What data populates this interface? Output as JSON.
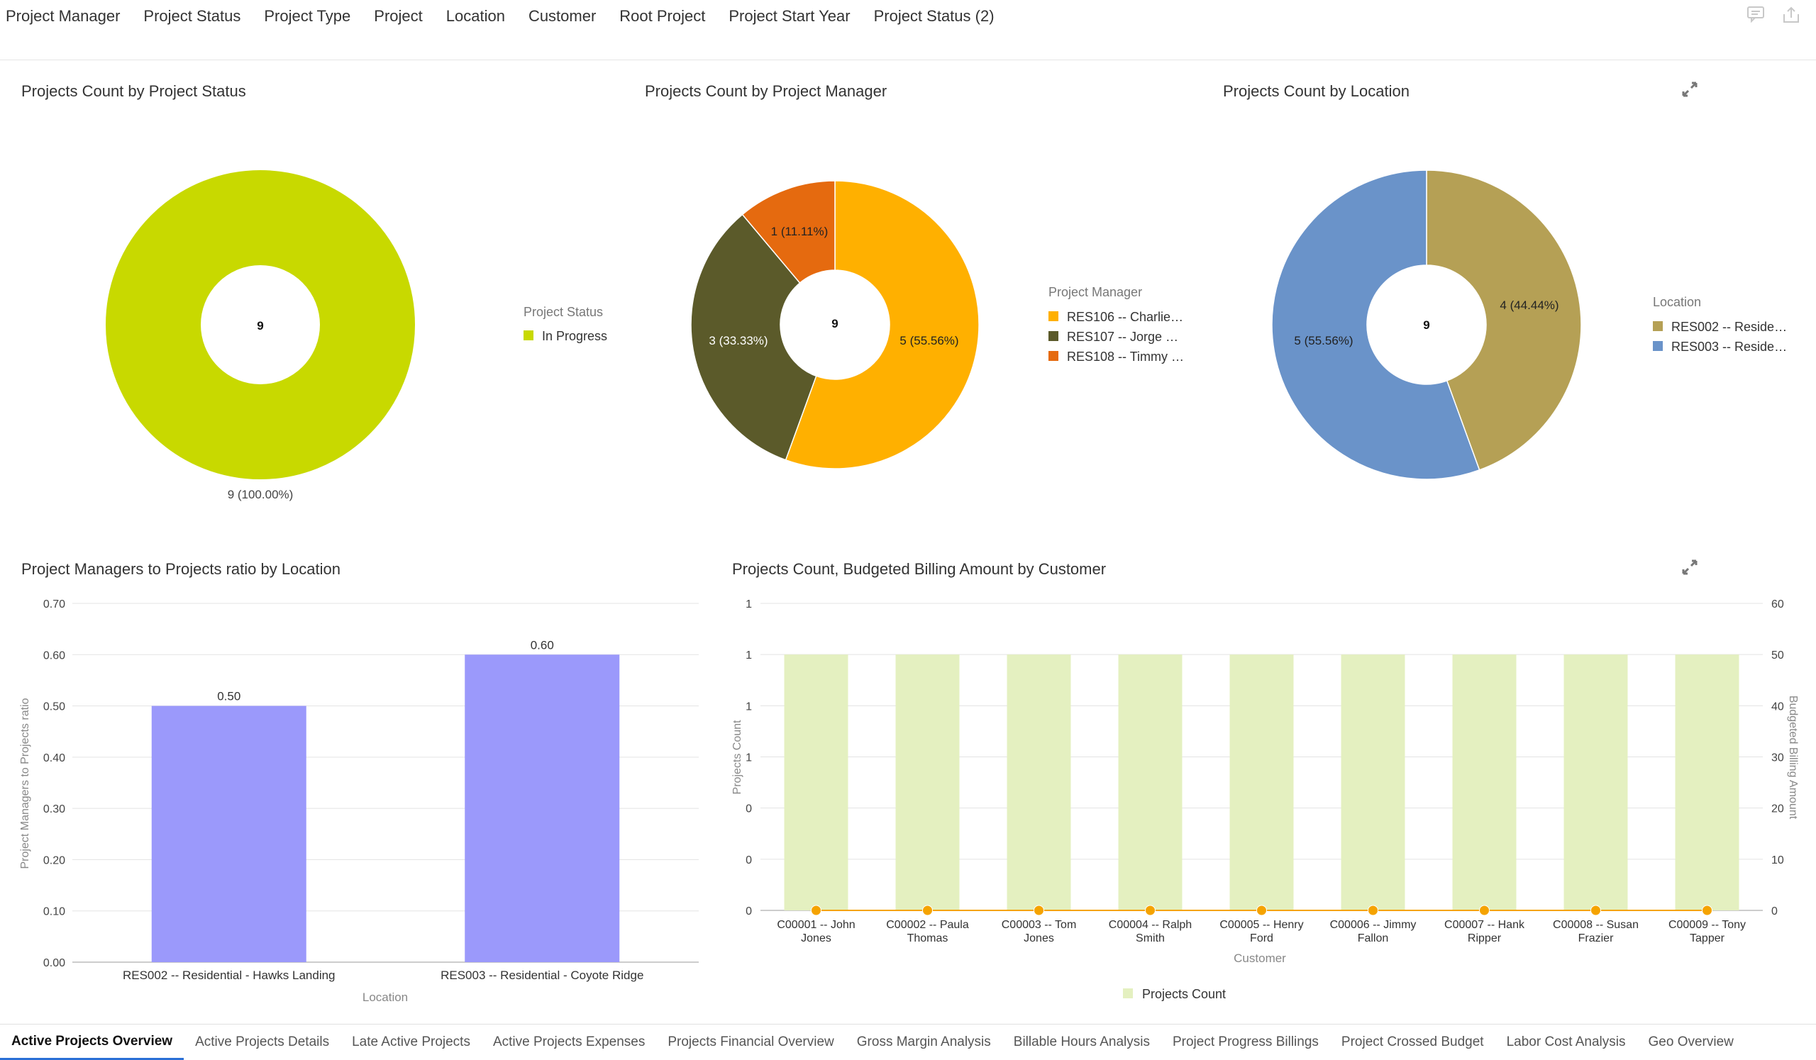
{
  "filters": [
    "Project Manager",
    "Project Status",
    "Project Type",
    "Project",
    "Location",
    "Customer",
    "Root Project",
    "Project Start Year",
    "Project Status (2)"
  ],
  "top_icons": {
    "comment": "comment-icon",
    "export": "export-icon"
  },
  "charts": {
    "status": {
      "title": "Projects Count by Project Status",
      "center": "9",
      "legend_title": "Project Status",
      "legend": [
        "In Progress"
      ],
      "slice_label": "9 (100.00%)"
    },
    "manager": {
      "title": "Projects Count by Project Manager",
      "center": "9",
      "legend_title": "Project Manager",
      "legend": [
        "RES106 -- Charlie…",
        "RES107 -- Jorge …",
        "RES108 -- Timmy …"
      ],
      "slice_labels": [
        "5 (55.56%)",
        "3 (33.33%)",
        "1 (11.11%)"
      ]
    },
    "location": {
      "title": "Projects Count by Location",
      "center": "9",
      "legend_title": "Location",
      "legend": [
        "RES002 -- Reside…",
        "RES003 -- Reside…"
      ],
      "slice_labels": [
        "4 (44.44%)",
        "5 (55.56%)"
      ]
    },
    "ratio": {
      "title": "Project Managers to Projects ratio by Location",
      "ylabel": "Project Managers to Projects ratio",
      "xlabel": "Location",
      "yticks": [
        "0.70",
        "0.60",
        "0.50",
        "0.40",
        "0.30",
        "0.20",
        "0.10",
        "0.00"
      ],
      "bar_labels": [
        "0.50",
        "0.60"
      ]
    },
    "customer": {
      "title": "Projects Count, Budgeted Billing Amount by Customer",
      "ylabel_left": "Projects Count",
      "ylabel_right": "Budgeted Billing Amount",
      "xlabel": "Customer",
      "left_ticks": [
        "1",
        "1",
        "1",
        "1",
        "0",
        "0",
        "0"
      ],
      "right_ticks": [
        "60",
        "50",
        "40",
        "30",
        "20",
        "10",
        "0"
      ],
      "legend": "Projects Count"
    }
  },
  "chart_data": [
    {
      "type": "pie",
      "title": "Projects Count by Project Status",
      "donut": true,
      "categories": [
        "In Progress"
      ],
      "values": [
        9
      ],
      "colors": [
        "#c8d900"
      ],
      "legend_placement": "right"
    },
    {
      "type": "pie",
      "title": "Projects Count by Project Manager",
      "donut": true,
      "categories": [
        "RES106 -- Charlie…",
        "RES107 -- Jorge …",
        "RES108 -- Timmy …"
      ],
      "values": [
        5,
        3,
        1
      ],
      "colors": [
        "#ffb000",
        "#5b5a2a",
        "#e56a0f"
      ],
      "legend_placement": "right"
    },
    {
      "type": "pie",
      "title": "Projects Count by Location",
      "donut": true,
      "categories": [
        "RES002 -- Reside…",
        "RES003 -- Reside…"
      ],
      "values": [
        4,
        5
      ],
      "colors": [
        "#b5a055",
        "#6a93c9"
      ],
      "legend_placement": "right"
    },
    {
      "type": "bar",
      "title": "Project Managers to Projects ratio by Location",
      "categories": [
        "RES002 -- Residential - Hawks Landing",
        "RES003 -- Residential - Coyote Ridge"
      ],
      "values": [
        0.5,
        0.6
      ],
      "ylim": [
        0,
        0.7
      ],
      "xlabel": "Location",
      "ylabel": "Project Managers to Projects ratio",
      "color": "#9b99fb",
      "grid": true
    },
    {
      "type": "bar",
      "title": "Projects Count, Budgeted Billing Amount by Customer",
      "categories": [
        "C00001 -- John Jones",
        "C00002 -- Paula Thomas",
        "C00003 -- Tom Jones",
        "C00004 -- Ralph Smith",
        "C00005 -- Henry Ford",
        "C00006 -- Jimmy Fallon",
        "C00007 -- Hank Ripper",
        "C00008 -- Susan Frazier",
        "C00009 -- Tony Tapper"
      ],
      "categories_lines": [
        [
          "C00001 -- John",
          "Jones"
        ],
        [
          "C00002 -- Paula",
          "Thomas"
        ],
        [
          "C00003 -- Tom",
          "Jones"
        ],
        [
          "C00004 -- Ralph",
          "Smith"
        ],
        [
          "C00005 -- Henry",
          "Ford"
        ],
        [
          "C00006 -- Jimmy",
          "Fallon"
        ],
        [
          "C00007 -- Hank",
          "Ripper"
        ],
        [
          "C00008 -- Susan",
          "Frazier"
        ],
        [
          "C00009 -- Tony",
          "Tapper"
        ]
      ],
      "series": [
        {
          "name": "Projects Count",
          "type": "bar",
          "axis": "left",
          "values": [
            1,
            1,
            1,
            1,
            1,
            1,
            1,
            1,
            1
          ],
          "color": "#e4f0c0"
        },
        {
          "type": "line",
          "axis": "right",
          "values": [
            0,
            0,
            0,
            0,
            0,
            0,
            0,
            0,
            0
          ],
          "color": "#f5a300"
        }
      ],
      "ylim_left": [
        0,
        1.2
      ],
      "ylim_right": [
        0,
        60
      ],
      "xlabel": "Customer",
      "ylabel": "Projects Count",
      "ylabel_right": "Budgeted Billing Amount",
      "grid": true,
      "legend_placement": "bottom"
    }
  ],
  "tabs": [
    "Active Projects Overview",
    "Active Projects Details",
    "Late Active Projects",
    "Active Projects Expenses",
    "Projects Financial Overview",
    "Gross Margin Analysis",
    "Billable Hours Analysis",
    "Project Progress Billings",
    "Project Crossed Budget",
    "Labor Cost Analysis",
    "Geo Overview"
  ],
  "active_tab": 0
}
